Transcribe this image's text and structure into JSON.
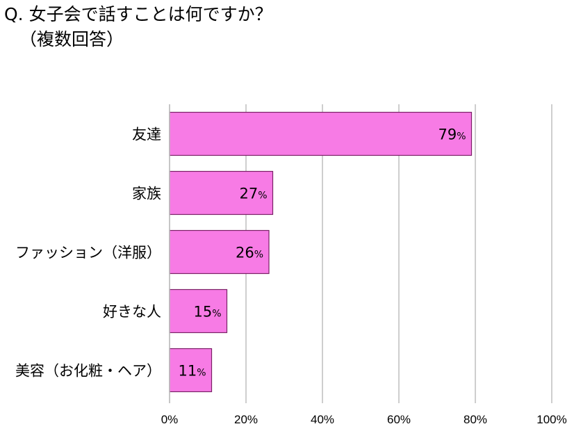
{
  "title": "Q. 女子会で話すことは何ですか？",
  "subtitle": "（複数回答）",
  "colors": {
    "bar": "#f77be5",
    "bar_border": "#7a1f66",
    "grid": "#bdbdbd"
  },
  "chart_data": {
    "type": "bar",
    "orientation": "horizontal",
    "categories": [
      "友達",
      "家族",
      "ファッション（洋服）",
      "好きな人",
      "美容（お化粧・ヘア）"
    ],
    "values": [
      79,
      27,
      26,
      15,
      11
    ],
    "value_labels": [
      "79",
      "27",
      "26",
      "15",
      "11"
    ],
    "value_unit": "%",
    "xlim": [
      0,
      100
    ],
    "x_ticks": [
      "0%",
      "20%",
      "40%",
      "60%",
      "80%",
      "100%"
    ],
    "grid": true,
    "legend": "none"
  }
}
